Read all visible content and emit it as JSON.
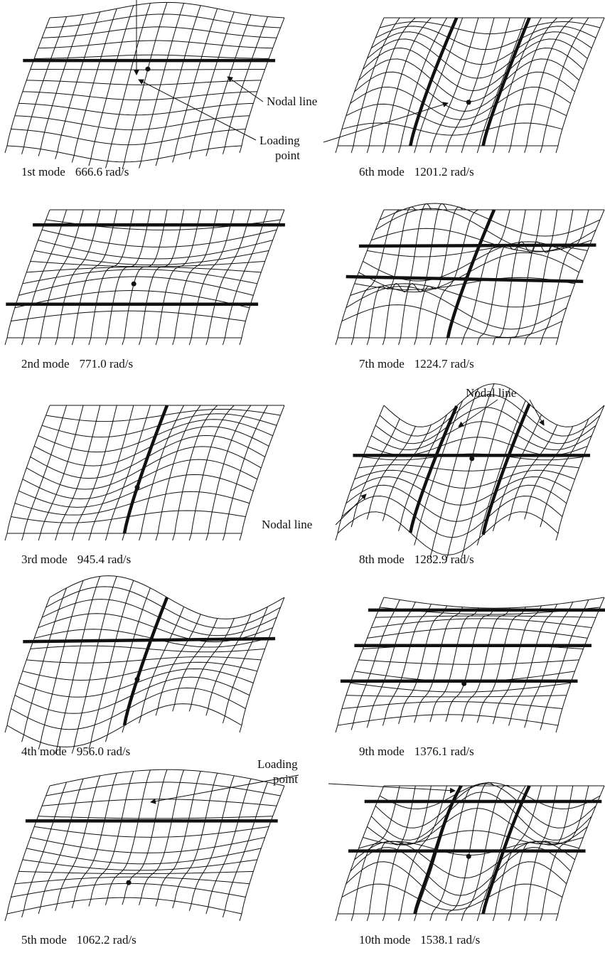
{
  "panels": [
    {
      "mode": "1st mode",
      "frequency": "666.6 rad/s"
    },
    {
      "mode": "2nd mode",
      "frequency": "771.0 rad/s"
    },
    {
      "mode": "3rd mode",
      "frequency": "945.4 rad/s"
    },
    {
      "mode": "4th mode",
      "frequency": "956.0 rad/s"
    },
    {
      "mode": "5th mode",
      "frequency": "1062.2 rad/s"
    },
    {
      "mode": "6th mode",
      "frequency": "1201.2 rad/s"
    },
    {
      "mode": "7th mode",
      "frequency": "1224.7 rad/s"
    },
    {
      "mode": "8th mode",
      "frequency": "1282.9 rad/s"
    },
    {
      "mode": "9th mode",
      "frequency": "1376.1 rad/s"
    },
    {
      "mode": "10th mode",
      "frequency": "1538.1 rad/s"
    }
  ],
  "annotations": [
    {
      "lines": [
        "Nodal line"
      ]
    },
    {
      "lines": [
        "Loading",
        "point"
      ]
    },
    {
      "lines": [
        "Nodal line"
      ]
    },
    {
      "lines": [
        "Nodal line"
      ]
    },
    {
      "lines": [
        "Loading",
        "point"
      ]
    }
  ]
}
